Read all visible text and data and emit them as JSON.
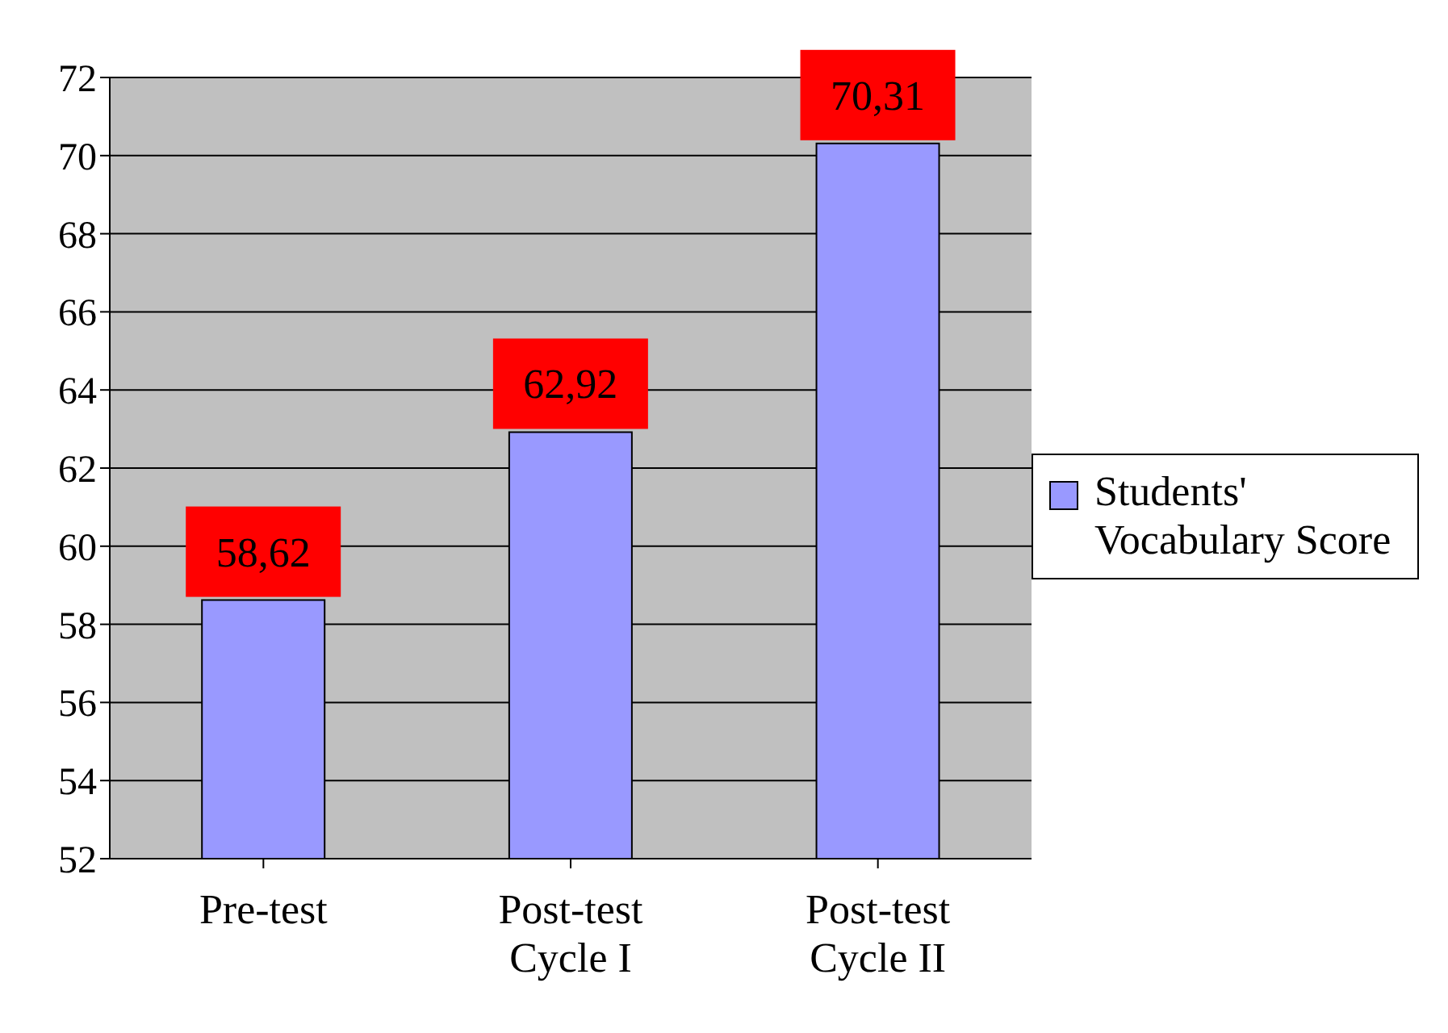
{
  "chart_data": {
    "type": "bar",
    "categories": [
      "Pre-test",
      "Post-test\nCycle I",
      "Post-test\nCycle II"
    ],
    "series": [
      {
        "name": "Students' Vocabulary Score",
        "color": "#9999ff",
        "values": [
          58.62,
          62.92,
          70.31
        ],
        "value_labels": [
          "58,62",
          "62,92",
          "70,31"
        ]
      }
    ],
    "ylim": [
      52,
      72
    ],
    "yticks": [
      52,
      54,
      56,
      58,
      60,
      62,
      64,
      66,
      68,
      70,
      72
    ],
    "grid": "y",
    "legend": "right"
  }
}
